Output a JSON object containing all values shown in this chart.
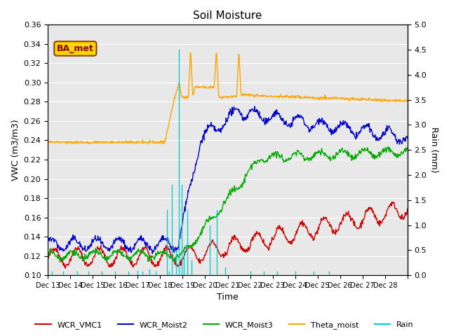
{
  "title": "Soil Moisture",
  "ylabel_left": "VWC (m3/m3)",
  "ylabel_right": "Rain (mm)",
  "xlabel": "Time",
  "ylim_left": [
    0.1,
    0.36
  ],
  "ylim_right": [
    0.0,
    5.0
  ],
  "yticks_left": [
    0.1,
    0.12,
    0.14,
    0.16,
    0.18,
    0.2,
    0.22,
    0.24,
    0.26,
    0.28,
    0.3,
    0.32,
    0.34,
    0.36
  ],
  "yticks_right": [
    0.0,
    0.5,
    1.0,
    1.5,
    2.0,
    2.5,
    3.0,
    3.5,
    4.0,
    4.5,
    5.0
  ],
  "background_color": "#e8e8e8",
  "grid_color": "#ffffff",
  "annotation_text": "BA_met",
  "annotation_box_color": "#ffd700",
  "annotation_text_color": "#8b0000",
  "colors": {
    "WCR_VMC1": "#cc0000",
    "WCR_Moist2": "#0000cc",
    "WCR_Moist3": "#00aa00",
    "Theta_moist": "#ffa500",
    "Rain": "#00cccc"
  },
  "xtick_positions": [
    0,
    1,
    2,
    3,
    4,
    5,
    6,
    7,
    8,
    9,
    10,
    11,
    12,
    13,
    14,
    15,
    16
  ],
  "xtick_labels": [
    "Dec 13",
    "Dec 14",
    "Dec 15",
    "Dec 16",
    "Dec 17",
    "Dec 18",
    "Dec 19",
    "Dec 20",
    "Dec 21",
    "Dec 22",
    "Dec 23",
    "Dec 24",
    "Dec 25",
    "Dec 26",
    "Dec 27",
    "Dec 28",
    ""
  ],
  "n_days": 16
}
